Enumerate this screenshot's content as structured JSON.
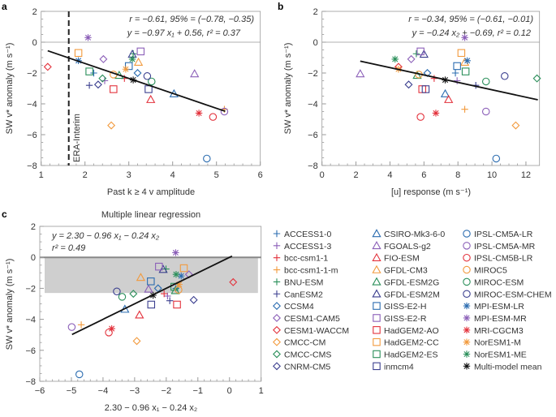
{
  "palette": {
    "blue": "#2b6cb0",
    "purple": "#8b5fb8",
    "red": "#e3323c",
    "orange": "#f29a3d",
    "green": "#2a8f5a",
    "navy": "#3b3f8f",
    "black": "#111111"
  },
  "chart_data": [
    {
      "panel": "a",
      "type": "scatter",
      "xlabel": "Past k ≥ 4  v amplitude",
      "ylabel": "SW v* anomaly (m s⁻¹)",
      "xlim": [
        1,
        6
      ],
      "ylim": [
        -8,
        2
      ],
      "xticks": [
        1,
        2,
        3,
        4,
        5,
        6
      ],
      "yticks": [
        -8,
        -6,
        -4,
        -2,
        0,
        2
      ],
      "xvar": "x1",
      "annotations": [
        "r = −0.61, 95% = (−0.78, −0.35)",
        "y = −0.97 x₁ + 0.56, r² = 0.37"
      ],
      "reference_line": {
        "label": "ERA-Interim",
        "x": 1.63
      },
      "fit": {
        "slope": -0.97,
        "intercept": 0.56,
        "xrange": [
          1.15,
          5.2
        ]
      }
    },
    {
      "panel": "b",
      "type": "scatter",
      "xlabel": "[u] response (m s⁻¹)",
      "ylabel": "SW v* anomaly (m s⁻¹)",
      "xlim": [
        0,
        12.8
      ],
      "ylim": [
        -8,
        2
      ],
      "xticks": [
        0,
        2,
        4,
        6,
        8,
        10,
        12
      ],
      "yticks": [
        -8,
        -6,
        -4,
        -2,
        0,
        2
      ],
      "xvar": "x2",
      "annotations": [
        "r = −0.34, 95% = (−0.61, −0.01)",
        "y = −0.24 x₂  + −0.69, r² = 0.12"
      ],
      "fit": {
        "slope": -0.24,
        "intercept": -0.69,
        "xrange": [
          2.25,
          12.7
        ]
      }
    },
    {
      "panel": "c",
      "type": "scatter",
      "title": "Multiple linear regression",
      "xlabel": "2.30 − 0.96 x₁ − 0.24 x₂",
      "ylabel": "SW v* anomaly (m s⁻¹)",
      "xlim": [
        -6,
        1
      ],
      "ylim": [
        -8,
        2
      ],
      "xticks": [
        -6,
        -5,
        -4,
        -3,
        -2,
        -1,
        0,
        1
      ],
      "yticks": [
        -8,
        -6,
        -4,
        -2,
        0,
        2
      ],
      "xvar": "mlr",
      "mlr": {
        "intercept": 2.3,
        "b1": -0.96,
        "b2": -0.24
      },
      "annotations": [
        "y = 2.30 − 0.96 x₁ − 0.24 x₂",
        "r² = 0.49"
      ],
      "shaded_band": {
        "y": [
          -2.3,
          0
        ]
      },
      "fit": {
        "slope": 1.0,
        "intercept": 0.0,
        "xrange": [
          -4.98,
          0.08
        ]
      }
    }
  ],
  "models": [
    {
      "name": "ACCESS1-0",
      "color": "blue",
      "marker": "plus",
      "x1": 2.2,
      "x2": 7.85,
      "y": -2.0
    },
    {
      "name": "ACCESS1-3",
      "color": "purple",
      "marker": "plus",
      "x1": 2.45,
      "x2": 7.95,
      "y": -2.5
    },
    {
      "name": "bcc-csm1-1",
      "color": "red",
      "marker": "plus",
      "x1": 2.9,
      "x2": 6.6,
      "y": -2.35
    },
    {
      "name": "bcc-csm1-1-m",
      "color": "orange",
      "marker": "plus",
      "x1": 5.18,
      "x2": 8.4,
      "y": -4.35
    },
    {
      "name": "BNU-ESM",
      "color": "green",
      "marker": "plus",
      "x1": 3.1,
      "x2": 5.55,
      "y": -0.75
    },
    {
      "name": "CanESM2",
      "color": "navy",
      "marker": "plus",
      "x1": 2.1,
      "x2": 9.05,
      "y": -2.8
    },
    {
      "name": "CCSM4",
      "color": "blue",
      "marker": "diamond",
      "x1": 3.2,
      "x2": 6.2,
      "y": -2.0
    },
    {
      "name": "CESM1-CAM5",
      "color": "purple",
      "marker": "diamond",
      "x1": 2.42,
      "x2": 5.25,
      "y": -1.1
    },
    {
      "name": "CESM1-WACCM",
      "color": "red",
      "marker": "diamond",
      "x1": 1.15,
      "x2": 4.5,
      "y": -1.6
    },
    {
      "name": "CMCC-CM",
      "color": "orange",
      "marker": "diamond",
      "x1": 2.6,
      "x2": 11.4,
      "y": -5.4
    },
    {
      "name": "CMCC-CMS",
      "color": "green",
      "marker": "diamond",
      "x1": 2.4,
      "x2": 12.65,
      "y": -2.35
    },
    {
      "name": "CNRM-CM5",
      "color": "navy",
      "marker": "diamond",
      "x1": 2.3,
      "x2": 5.1,
      "y": -2.75
    },
    {
      "name": "CSIRO-Mk3-6-0",
      "color": "blue",
      "marker": "triangle",
      "x1": 4.03,
      "x2": 7.25,
      "y": -3.35
    },
    {
      "name": "FGOALS-g2",
      "color": "purple",
      "marker": "triangle",
      "x1": 4.5,
      "x2": 2.25,
      "y": -2.05
    },
    {
      "name": "FIO-ESM",
      "color": "red",
      "marker": "triangle",
      "x1": 3.5,
      "x2": 7.45,
      "y": -3.72
    },
    {
      "name": "GFDL-CM3",
      "color": "orange",
      "marker": "triangle",
      "x1": 3.22,
      "x2": 8.4,
      "y": -1.3
    },
    {
      "name": "GFDL-ESM2G",
      "color": "green",
      "marker": "triangle",
      "x1": 2.78,
      "x2": 5.6,
      "y": -2.15
    },
    {
      "name": "GFDL-ESM2M",
      "color": "navy",
      "marker": "triangle",
      "x1": 3.08,
      "x2": 6.0,
      "y": -0.78
    },
    {
      "name": "GISS-E2-H",
      "color": "blue",
      "marker": "square",
      "x1": 3.0,
      "x2": 7.95,
      "y": -1.55
    },
    {
      "name": "GISS-E2-R",
      "color": "purple",
      "marker": "square",
      "x1": 3.27,
      "x2": 5.8,
      "y": -0.6
    },
    {
      "name": "HadGEM2-AO",
      "color": "red",
      "marker": "square",
      "x1": 2.65,
      "x2": 5.9,
      "y": -3.05
    },
    {
      "name": "HadGEM2-CC",
      "color": "orange",
      "marker": "square",
      "x1": 1.85,
      "x2": 8.2,
      "y": -0.7
    },
    {
      "name": "HadGEM2-ES",
      "color": "green",
      "marker": "square",
      "x1": 2.1,
      "x2": 8.45,
      "y": -1.9
    },
    {
      "name": "inmcm4",
      "color": "navy",
      "marker": "square",
      "x1": 3.45,
      "x2": 6.1,
      "y": -3.05
    },
    {
      "name": "IPSL-CM5A-LR",
      "color": "blue",
      "marker": "circle",
      "x1": 4.78,
      "x2": 10.25,
      "y": -7.55
    },
    {
      "name": "IPSL-CM5A-MR",
      "color": "purple",
      "marker": "circle",
      "x1": 5.18,
      "x2": 9.65,
      "y": -4.5
    },
    {
      "name": "IPSL-CM5B-LR",
      "color": "red",
      "marker": "circle",
      "x1": 4.92,
      "x2": 5.8,
      "y": -4.85
    },
    {
      "name": "MIROC5",
      "color": "orange",
      "marker": "circle",
      "x1": 2.65,
      "x2": 5.7,
      "y": -2.1
    },
    {
      "name": "MIROC-ESM",
      "color": "green",
      "marker": "circle",
      "x1": 3.52,
      "x2": 9.65,
      "y": -2.55
    },
    {
      "name": "MIROC-ESM-CHEM",
      "color": "navy",
      "marker": "circle",
      "x1": 3.42,
      "x2": 10.75,
      "y": -2.2
    },
    {
      "name": "MPI-ESM-LR",
      "color": "blue",
      "marker": "asterisk",
      "x1": 1.85,
      "x2": 8.55,
      "y": -1.2
    },
    {
      "name": "MPI-ESM-MR",
      "color": "purple",
      "marker": "asterisk",
      "x1": 2.07,
      "x2": 8.4,
      "y": 0.3
    },
    {
      "name": "MRI-CGCM3",
      "color": "red",
      "marker": "asterisk",
      "x1": 4.6,
      "x2": 6.7,
      "y": -4.6
    },
    {
      "name": "NorESM1-M",
      "color": "orange",
      "marker": "asterisk",
      "x1": 2.93,
      "x2": 4.5,
      "y": -1.75
    },
    {
      "name": "NorESM1-ME",
      "color": "green",
      "marker": "asterisk",
      "x1": 3.08,
      "x2": 4.3,
      "y": -1.1
    },
    {
      "name": "Multi-model mean",
      "color": "black",
      "marker": "asterisk",
      "x1": 3.1,
      "x2": 7.25,
      "y": -2.45
    }
  ]
}
